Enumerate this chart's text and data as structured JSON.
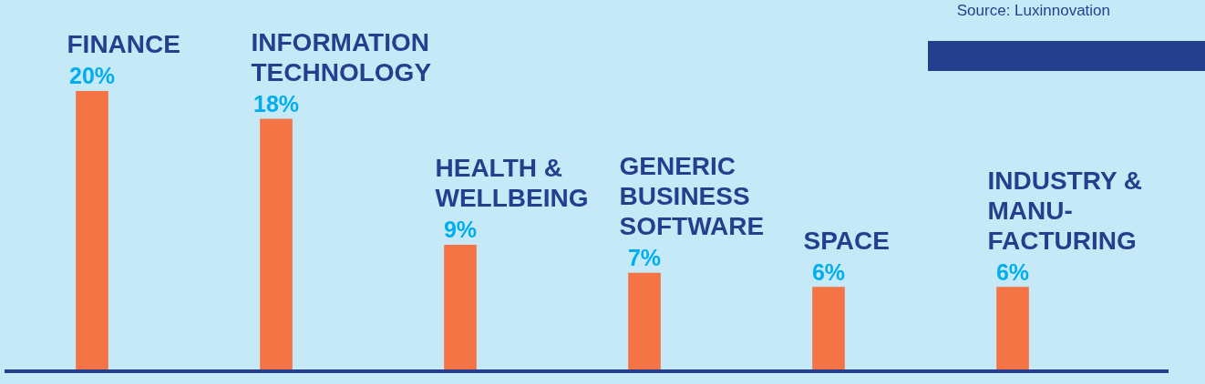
{
  "chart_data": {
    "type": "bar",
    "categories": [
      "FINANCE",
      "INFORMATION TECHNOLOGY",
      "HEALTH & WELLBEING",
      "GENERIC BUSINESS SOFTWARE",
      "SPACE",
      "INDUSTRY & MANU-FACTURING"
    ],
    "values": [
      20,
      18,
      9,
      7,
      6,
      6
    ],
    "value_labels": [
      "20%",
      "18%",
      "9%",
      "7%",
      "6%",
      "6%"
    ],
    "color": "#f47445",
    "annotations": [
      "Source: Luxinnovation"
    ]
  }
}
